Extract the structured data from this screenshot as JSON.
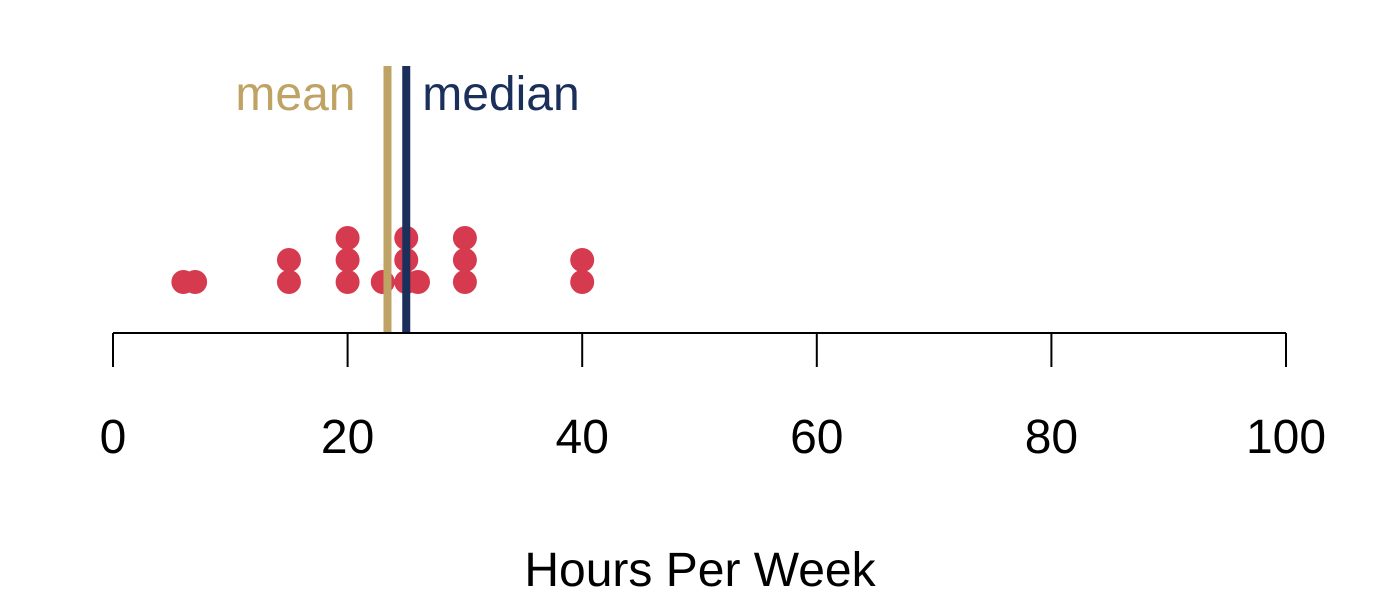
{
  "chart_data": {
    "type": "scatter",
    "title": "",
    "xlabel": "Hours Per Week",
    "ylabel": "",
    "xlim": [
      0,
      100
    ],
    "xticks": [
      0,
      20,
      40,
      60,
      80,
      100
    ],
    "tick_labels": [
      "0",
      "20",
      "40",
      "60",
      "80",
      "100"
    ],
    "grid": false,
    "points": [
      {
        "x": 6,
        "stack": 0
      },
      {
        "x": 7,
        "stack": 0
      },
      {
        "x": 15,
        "stack": 0
      },
      {
        "x": 15,
        "stack": 1
      },
      {
        "x": 20,
        "stack": 0
      },
      {
        "x": 20,
        "stack": 1
      },
      {
        "x": 20,
        "stack": 2
      },
      {
        "x": 23,
        "stack": 0
      },
      {
        "x": 25,
        "stack": 0
      },
      {
        "x": 25,
        "stack": 1
      },
      {
        "x": 25,
        "stack": 2
      },
      {
        "x": 26,
        "stack": 0
      },
      {
        "x": 30,
        "stack": 0
      },
      {
        "x": 30,
        "stack": 1
      },
      {
        "x": 30,
        "stack": 2
      },
      {
        "x": 40,
        "stack": 0
      },
      {
        "x": 40,
        "stack": 1
      }
    ],
    "reference_lines": [
      {
        "name": "mean",
        "x": 23.4,
        "color": "#bfa364"
      },
      {
        "name": "median",
        "x": 25,
        "color": "#1b2f5b"
      }
    ],
    "point_color": "#d63a4e"
  }
}
